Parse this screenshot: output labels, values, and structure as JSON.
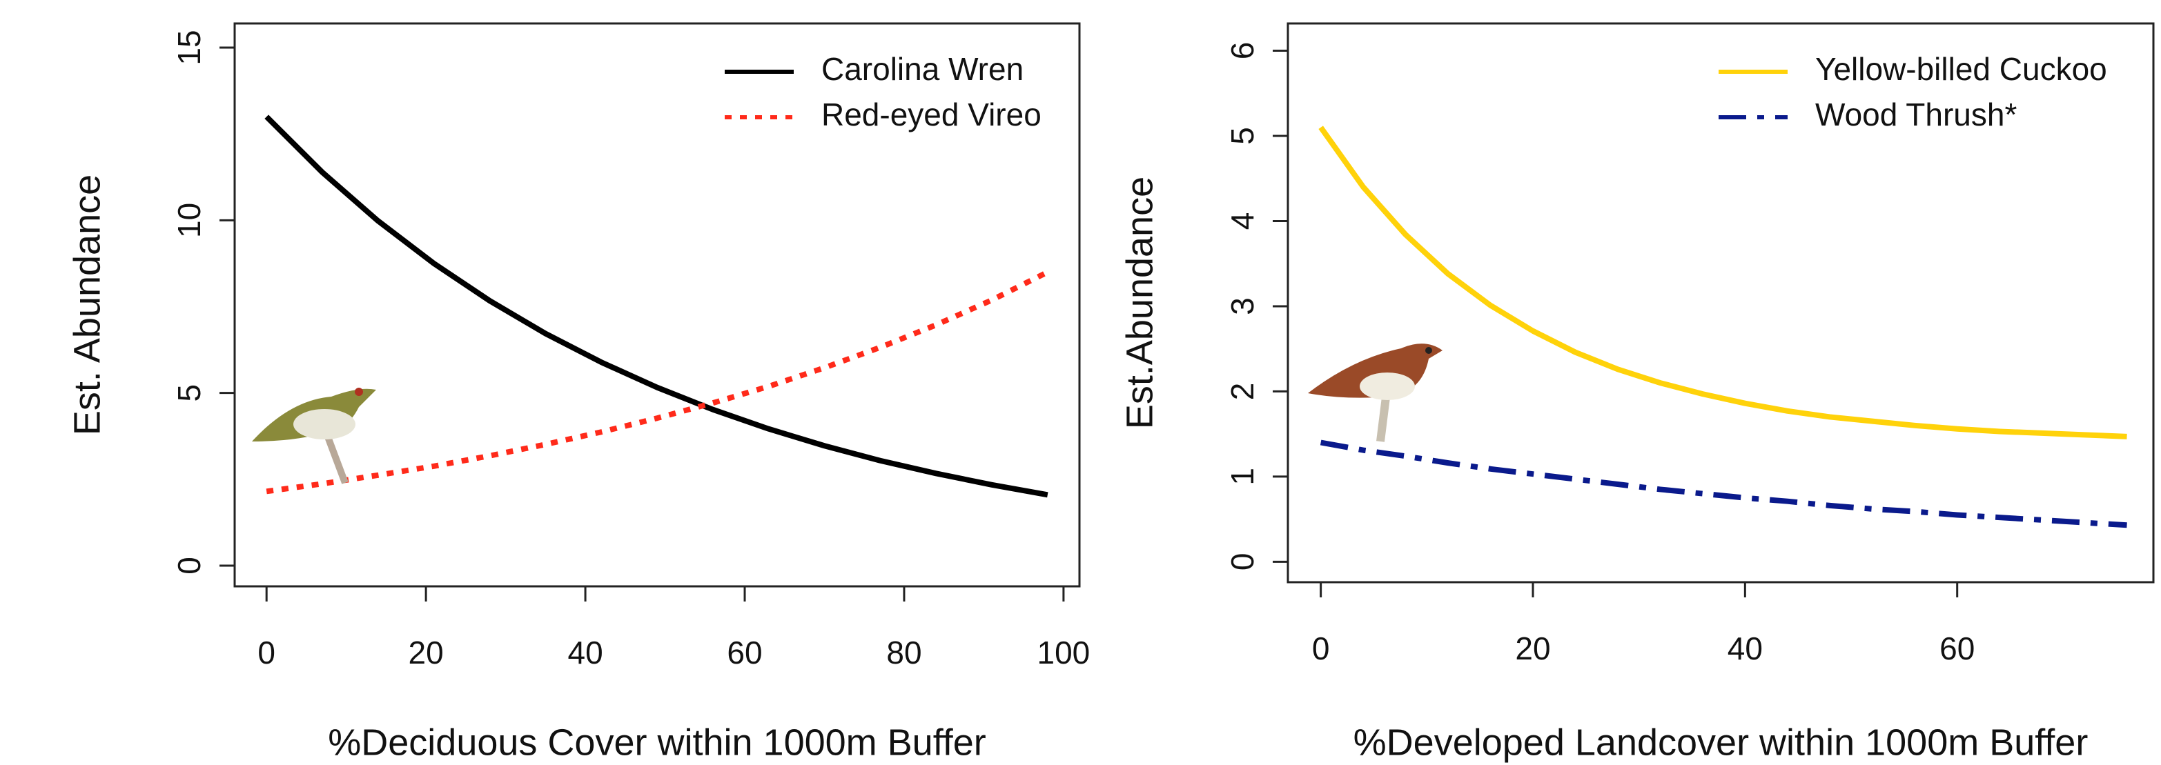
{
  "chart_data": [
    {
      "type": "line",
      "x_label": "%Deciduous Cover within 1000m Buffer",
      "y_label": "Est. Abundance",
      "x": [
        0,
        7,
        14,
        21,
        28,
        35,
        42,
        49,
        56,
        63,
        70,
        77,
        84,
        91,
        98
      ],
      "series": [
        {
          "name": "Carolina Wren",
          "color": "#000000",
          "linestyle": "solid",
          "values": [
            13,
            11.39,
            9.98,
            8.75,
            7.67,
            6.72,
            5.89,
            5.16,
            4.52,
            3.96,
            3.47,
            3.04,
            2.67,
            2.34,
            2.05
          ]
        },
        {
          "name": "Red-eyed Vireo",
          "color": "#ff2a1a",
          "linestyle": "dotted",
          "values": [
            2.15,
            2.37,
            2.62,
            2.88,
            3.18,
            3.51,
            3.87,
            4.27,
            4.71,
            5.19,
            5.73,
            6.32,
            6.97,
            7.69,
            8.5
          ]
        }
      ],
      "xlim": [
        -4,
        102
      ],
      "xticks": [
        0,
        20,
        40,
        60,
        80,
        100
      ],
      "ylim": [
        -0.6,
        15.7
      ],
      "yticks": [
        0,
        5,
        10,
        15
      ],
      "legend": "top-right"
    },
    {
      "type": "line",
      "x_label": "%Developed Landcover within 1000m Buffer",
      "y_label": "Est.Abundance",
      "x": [
        0,
        4,
        8,
        12,
        16,
        20,
        24,
        28,
        32,
        36,
        40,
        44,
        48,
        52,
        56,
        60,
        64,
        68,
        72,
        76
      ],
      "series": [
        {
          "name": "Yellow-billed Cuckoo",
          "color": "#ffd20a",
          "linestyle": "solid",
          "values": [
            5.1,
            4.4,
            3.84,
            3.38,
            3.01,
            2.71,
            2.46,
            2.26,
            2.1,
            1.97,
            1.86,
            1.77,
            1.7,
            1.65,
            1.6,
            1.56,
            1.53,
            1.51,
            1.49,
            1.47
          ]
        },
        {
          "name": "Wood Thrush*",
          "color": "#0a1a8c",
          "linestyle": "dashdot",
          "values": [
            1.4,
            1.31,
            1.24,
            1.16,
            1.09,
            1.03,
            0.97,
            0.91,
            0.85,
            0.8,
            0.75,
            0.71,
            0.66,
            0.62,
            0.59,
            0.55,
            0.52,
            0.49,
            0.46,
            0.43
          ]
        }
      ],
      "xlim": [
        -3.1,
        78.5
      ],
      "xticks": [
        0,
        20,
        40,
        60
      ],
      "ylim": [
        -0.24,
        6.32
      ],
      "yticks": [
        0,
        1,
        2,
        3,
        4,
        5,
        6
      ],
      "legend": "top-right"
    }
  ]
}
